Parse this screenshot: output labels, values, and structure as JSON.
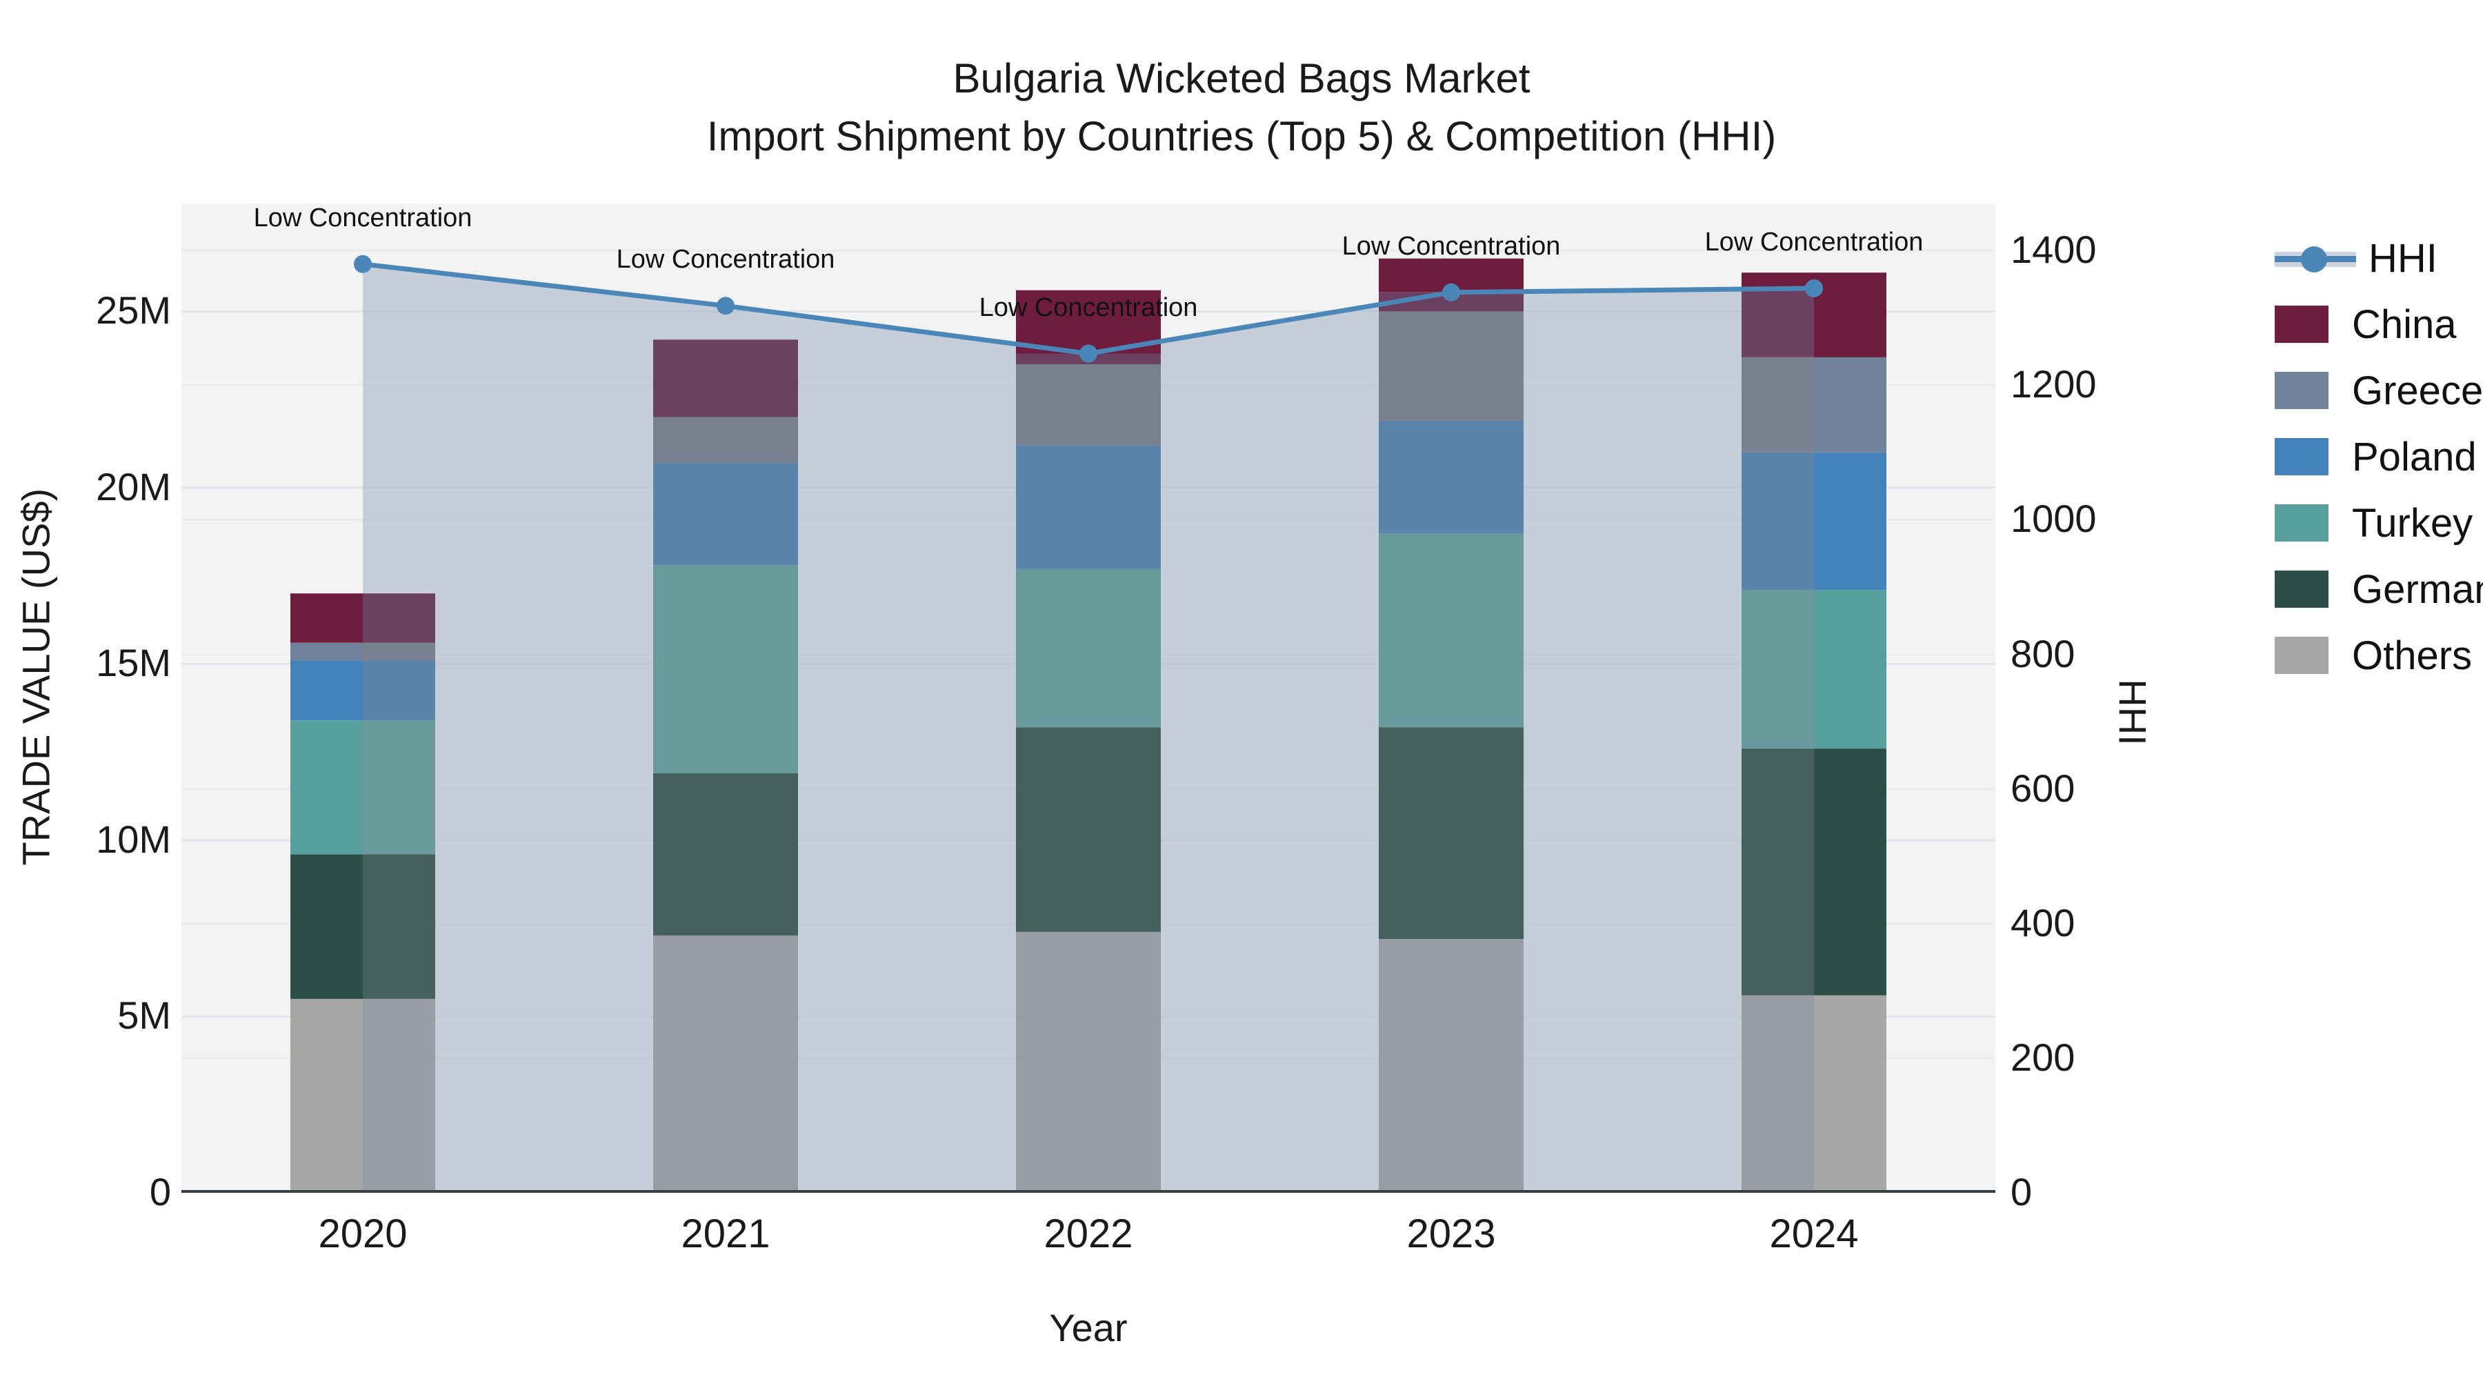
{
  "chart_data": {
    "type": "bar+line",
    "title_line1": "Bulgaria Wicketed Bags Market",
    "title_line2": "Import Shipment by Countries (Top 5) & Competition (HHI)",
    "categories": [
      "2020",
      "2021",
      "2022",
      "2023",
      "2024"
    ],
    "value_unit": "US$ millions",
    "stack_note": "series listed bottom-to-top of stack",
    "series": [
      {
        "name": "Others",
        "values": [
          5.5,
          7.3,
          7.4,
          7.2,
          5.6
        ]
      },
      {
        "name": "Germany",
        "values": [
          4.1,
          4.6,
          5.8,
          6.0,
          7.0
        ]
      },
      {
        "name": "Turkey",
        "values": [
          3.8,
          5.9,
          4.5,
          5.5,
          4.5
        ]
      },
      {
        "name": "Poland",
        "values": [
          1.7,
          2.9,
          3.5,
          3.2,
          3.9
        ]
      },
      {
        "name": "Greece",
        "values": [
          0.5,
          1.3,
          2.3,
          3.1,
          2.7
        ]
      },
      {
        "name": "China",
        "values": [
          1.4,
          2.2,
          2.1,
          1.5,
          2.4
        ]
      }
    ],
    "totals": [
      17.0,
      24.2,
      25.6,
      26.5,
      26.1
    ],
    "hhi": {
      "name": "HHI",
      "values": [
        1380,
        1318,
        1247,
        1338,
        1344
      ]
    },
    "annotation_text": "Low Concentration",
    "x_label": "Year",
    "y_left": {
      "label": "TRADE VALUE (US$)",
      "tick_values": [
        0,
        5,
        10,
        15,
        20,
        25
      ],
      "tick_labels": [
        "0",
        "5M",
        "10M",
        "15M",
        "20M",
        "25M"
      ],
      "max": 28.06
    },
    "y_right": {
      "label": "HHI",
      "tick_values": [
        0,
        200,
        400,
        600,
        800,
        1000,
        1200,
        1400
      ],
      "tick_labels": [
        "0",
        "200",
        "400",
        "600",
        "800",
        "1000",
        "1200",
        "1400"
      ],
      "max": 1470
    },
    "grid": true,
    "legend_position": "right"
  },
  "colors": {
    "figure_bg": "#ffffff",
    "plot_bg": "#f3f3f4",
    "grid_left": "#e2e4e7",
    "grid_right": "#e9eaec",
    "baseline": "#3a3f44",
    "hhi_line": "#4a86b8",
    "hhi_fill": "rgba(170,182,202,0.62)",
    "series": {
      "China": {
        "base": "#6f1d3e",
        "washed": "#6c4060"
      },
      "Greece": {
        "base": "#70839b",
        "washed": "#77818f"
      },
      "Poland": {
        "base": "#4382ba",
        "washed": "#5a84ab"
      },
      "Turkey": {
        "base": "#57a09d",
        "washed": "#68999b"
      },
      "Germany": {
        "base": "#2b4e48",
        "washed": "#46605e"
      },
      "Others": {
        "base": "#a7a8a5",
        "washed": "#989da5"
      }
    }
  },
  "legend": {
    "items": [
      {
        "label": "HHI",
        "type": "line"
      },
      {
        "label": "China",
        "type": "swatch"
      },
      {
        "label": "Greece",
        "type": "swatch"
      },
      {
        "label": "Poland",
        "type": "swatch"
      },
      {
        "label": "Turkey",
        "type": "swatch"
      },
      {
        "label": "Germany",
        "type": "swatch"
      },
      {
        "label": "Others",
        "type": "swatch"
      }
    ]
  }
}
